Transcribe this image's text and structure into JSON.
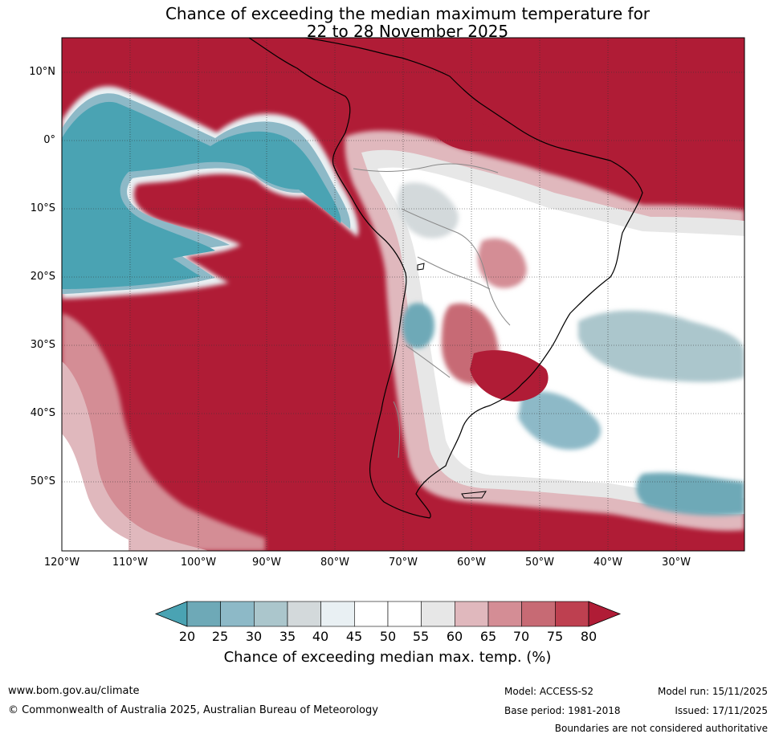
{
  "title": {
    "line1": "Chance of exceeding the median maximum temperature for",
    "line2": "22 to 28 November 2025"
  },
  "map": {
    "region": "South America",
    "lat_labels": [
      "10°N",
      "0°",
      "10°S",
      "20°S",
      "30°S",
      "40°S",
      "50°S"
    ],
    "lon_labels": [
      "120°W",
      "110°W",
      "100°W",
      "90°W",
      "80°W",
      "70°W",
      "60°W",
      "50°W",
      "40°W",
      "30°W"
    ]
  },
  "colorbar": {
    "label": "Chance of exceeding median max. temp. (%)",
    "ticks": [
      "20",
      "25",
      "30",
      "35",
      "40",
      "45",
      "50",
      "55",
      "60",
      "65",
      "70",
      "75",
      "80"
    ],
    "colors": [
      "#4aa3b3",
      "#6ea9b7",
      "#8db9c7",
      "#abc6cc",
      "#d3d9db",
      "#e9f0f3",
      "#ffffff",
      "#ffffff",
      "#e7e7e7",
      "#e0b8bd",
      "#d48d95",
      "#c76a74",
      "#be4050",
      "#b01c36"
    ]
  },
  "footer": {
    "url": "www.bom.gov.au/climate",
    "copyright": "© Commonwealth of Australia 2025, Australian Bureau of Meteorology",
    "model": "Model: ACCESS-S2",
    "base_period": "Base period: 1981-2018",
    "model_run": "Model run: 15/11/2025",
    "issued": "Issued: 17/11/2025",
    "disclaimer": "Boundaries are not considered authoritative"
  }
}
